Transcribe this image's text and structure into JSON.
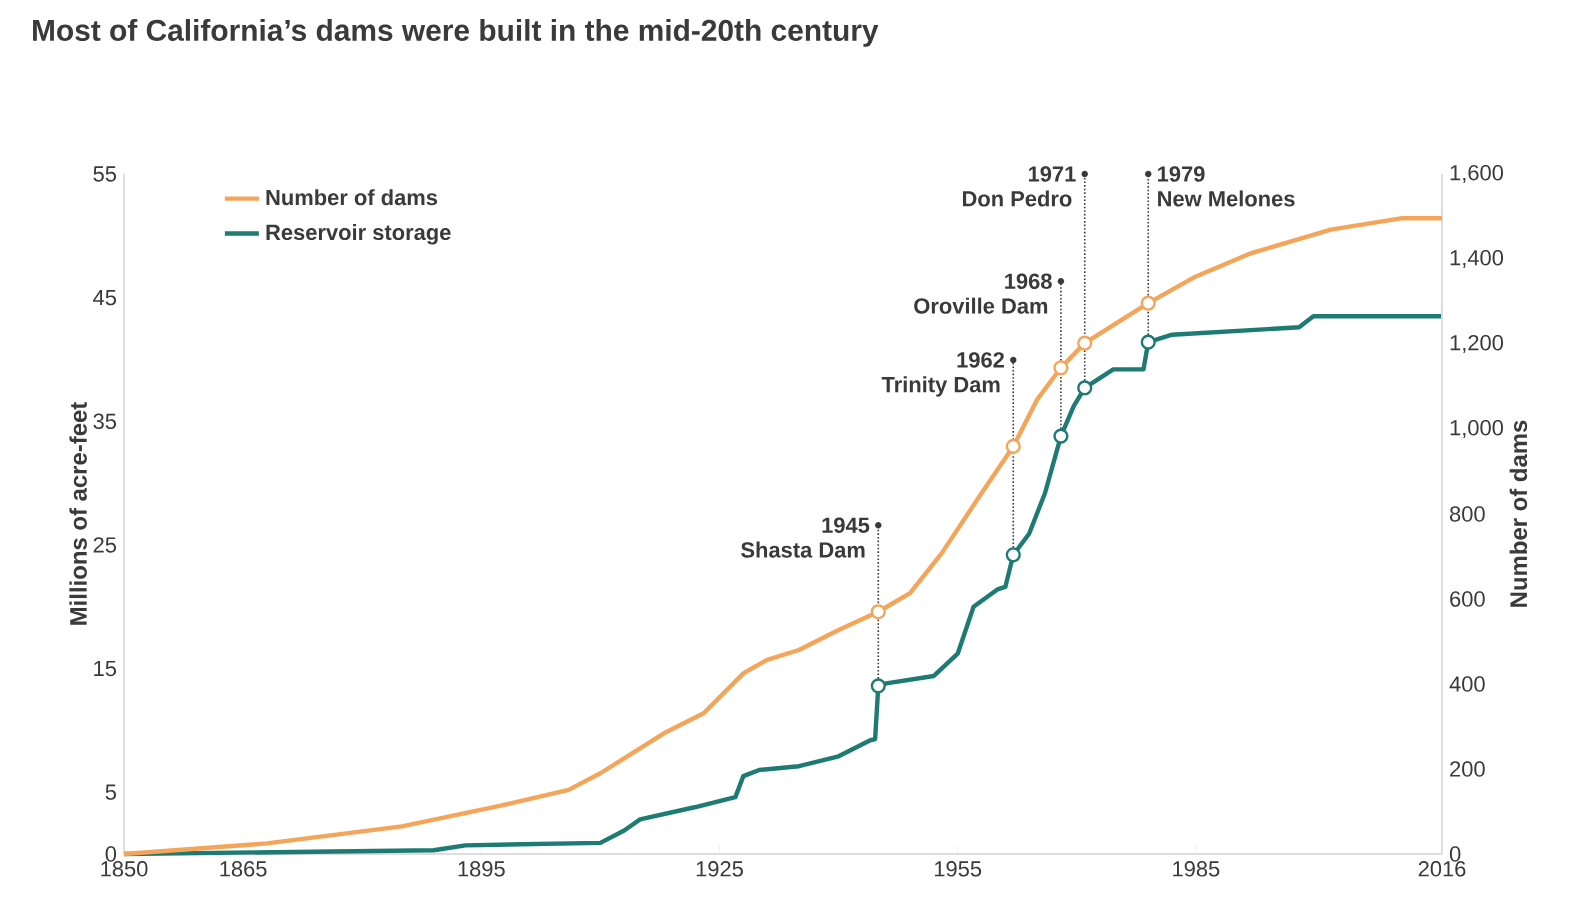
{
  "chart_data": {
    "type": "line",
    "title": "Most of California’s dams were built in the mid-20th century",
    "ylabel": "Millions of acre-feet",
    "y2label": "Number of dams",
    "xlim": [
      1850,
      2016
    ],
    "xticks": [
      1850,
      1865,
      1895,
      1925,
      1955,
      1985,
      2016
    ],
    "ylim": [
      0,
      55
    ],
    "yticks": [
      0,
      5,
      15,
      25,
      35,
      45,
      55
    ],
    "y2lim": [
      0,
      1600
    ],
    "y2ticks": [
      0,
      200,
      400,
      600,
      800,
      {
        "value": 1000,
        "label": "1,000"
      },
      {
        "value": 1200,
        "label": "1,200"
      },
      {
        "value": 1400,
        "label": "1,400"
      },
      {
        "value": 1600,
        "label": "1,600"
      }
    ],
    "legend": "top left",
    "line_style": "solid",
    "series": [
      {
        "name": "Number of dams",
        "color": "#f5a55a",
        "axis": "y2",
        "x": [
          1850,
          1868,
          1885,
          1897,
          1906,
          1910,
          1918,
          1923,
          1928,
          1931,
          1935,
          1940,
          1945,
          1949,
          1953,
          1958,
          1962,
          1965,
          1968,
          1971,
          1975,
          1979,
          1985,
          1992,
          2002,
          2011,
          2016
        ],
        "values": [
          0,
          25,
          65,
          112,
          151,
          190,
          284,
          331,
          425,
          457,
          480,
          527,
          570,
          614,
          708,
          849,
          959,
          1069,
          1144,
          1202,
          1249,
          1296,
          1359,
          1414,
          1469,
          1496,
          1496
        ]
      },
      {
        "name": "Reservoir storage",
        "color": "#1d7b73",
        "x": [
          1850,
          1889,
          1893,
          1910,
          1913,
          1915,
          1922,
          1927,
          1928,
          1930,
          1935,
          1940,
          1944,
          1944.6,
          1945,
          1946,
          1952,
          1955,
          1957,
          1960,
          1961,
          1962,
          1964,
          1966,
          1968,
          1969.6,
          1971,
          1974.6,
          1978.4,
          1979,
          1982,
          1998,
          1999.8,
          2016
        ],
        "values": [
          0,
          0.3,
          0.7,
          0.9,
          1.9,
          2.8,
          3.8,
          4.6,
          6.3,
          6.8,
          7.1,
          7.9,
          9.2,
          9.3,
          13.6,
          13.8,
          14.4,
          16.2,
          20.0,
          21.4,
          21.6,
          24.2,
          25.9,
          29.2,
          33.8,
          36.2,
          37.7,
          39.2,
          39.2,
          41.4,
          42.0,
          42.6,
          43.5,
          43.5
        ]
      }
    ],
    "annotations": [
      {
        "text": "1945",
        "x": 1945,
        "y": 13.6
      },
      {
        "text": "Shasta Dam",
        "x": 1945,
        "y": 13.6
      },
      {
        "text": "1962",
        "x": 1962,
        "y": 24.2
      },
      {
        "text": "Trinity Dam",
        "x": 1962,
        "y": 24.2
      },
      {
        "text": "1968",
        "x": 1968,
        "y": 33.8
      },
      {
        "text": "Oroville Dam",
        "x": 1968,
        "y": 33.8
      },
      {
        "text": "1971",
        "x": 1971,
        "y": 37.7
      },
      {
        "text": "Don Pedro",
        "x": 1971,
        "y": 37.7
      },
      {
        "text": "1979",
        "x": 1979,
        "y": 41.4
      },
      {
        "text": "New Melones",
        "x": 1979,
        "y": 41.4
      }
    ]
  }
}
